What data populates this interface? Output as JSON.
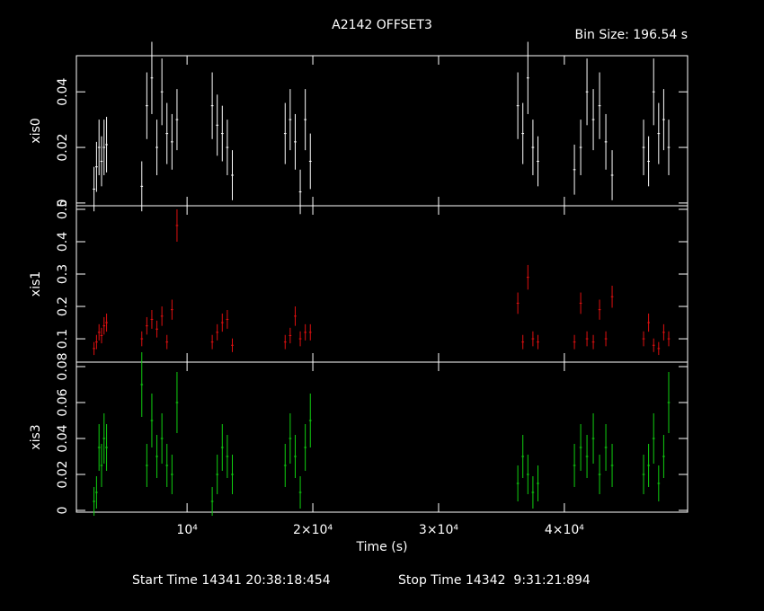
{
  "chart_data": [
    {
      "type": "scatter",
      "title": "A2142 OFFSET3",
      "subtitle": "Bin Size: 196.54 s",
      "ylabel": "xis0",
      "color": "#ffffff",
      "x": [
        2600,
        2800,
        3000,
        3200,
        3400,
        3600,
        6400,
        6800,
        7200,
        7600,
        8000,
        8400,
        8800,
        9200,
        12000,
        12400,
        12800,
        13200,
        13600,
        17800,
        18200,
        18600,
        19000,
        19400,
        19800,
        36300,
        36700,
        37100,
        37500,
        37900,
        40800,
        41300,
        41800,
        42300,
        42800,
        43300,
        43800,
        46300,
        46700,
        47100,
        47500,
        47900,
        48300
      ],
      "x_error": 98,
      "values": [
        0.005,
        0.013,
        0.02,
        0.015,
        0.02,
        0.021,
        0.006,
        0.035,
        0.045,
        0.02,
        0.04,
        0.025,
        0.022,
        0.03,
        0.035,
        0.028,
        0.025,
        0.02,
        0.01,
        0.025,
        0.03,
        0.022,
        0.004,
        0.03,
        0.015,
        0.035,
        0.025,
        0.045,
        0.02,
        0.015,
        0.012,
        0.02,
        0.04,
        0.03,
        0.035,
        0.022,
        0.01,
        0.02,
        0.015,
        0.04,
        0.025,
        0.03,
        0.02
      ],
      "errors": [
        0.008,
        0.009,
        0.01,
        0.009,
        0.01,
        0.01,
        0.009,
        0.012,
        0.013,
        0.01,
        0.012,
        0.011,
        0.01,
        0.011,
        0.012,
        0.011,
        0.01,
        0.01,
        0.009,
        0.011,
        0.011,
        0.01,
        0.008,
        0.011,
        0.01,
        0.012,
        0.011,
        0.013,
        0.01,
        0.009,
        0.009,
        0.01,
        0.012,
        0.011,
        0.012,
        0.01,
        0.009,
        0.01,
        0.009,
        0.012,
        0.011,
        0.011,
        0.01
      ],
      "xlim": [
        1200,
        49800
      ],
      "xticks": [
        10000,
        20000,
        30000,
        40000
      ],
      "ylim": [
        -0.001,
        0.053
      ],
      "yticks": [
        0,
        0.02,
        0.04
      ]
    },
    {
      "type": "scatter",
      "ylabel": "xis1",
      "color": "#e01010",
      "x": [
        2600,
        2800,
        3000,
        3200,
        3400,
        3600,
        6400,
        6800,
        7200,
        7600,
        8000,
        8400,
        8800,
        9200,
        12000,
        12400,
        12800,
        13200,
        13600,
        17800,
        18200,
        18600,
        19000,
        19400,
        19800,
        36300,
        36700,
        37100,
        37500,
        37900,
        40800,
        41300,
        41800,
        42300,
        42800,
        43300,
        43800,
        46300,
        46700,
        47100,
        47500,
        47900,
        48300
      ],
      "x_error": 98,
      "values": [
        0.07,
        0.09,
        0.12,
        0.11,
        0.14,
        0.15,
        0.1,
        0.14,
        0.16,
        0.13,
        0.17,
        0.09,
        0.19,
        0.45,
        0.09,
        0.12,
        0.15,
        0.16,
        0.08,
        0.09,
        0.11,
        0.17,
        0.1,
        0.12,
        0.12,
        0.21,
        0.09,
        0.29,
        0.1,
        0.09,
        0.09,
        0.21,
        0.1,
        0.09,
        0.19,
        0.1,
        0.23,
        0.1,
        0.15,
        0.08,
        0.07,
        0.12,
        0.1
      ],
      "errors": [
        0.02,
        0.022,
        0.025,
        0.024,
        0.027,
        0.028,
        0.023,
        0.027,
        0.029,
        0.026,
        0.03,
        0.022,
        0.031,
        0.05,
        0.022,
        0.025,
        0.028,
        0.029,
        0.021,
        0.022,
        0.024,
        0.03,
        0.023,
        0.025,
        0.025,
        0.033,
        0.022,
        0.038,
        0.023,
        0.022,
        0.022,
        0.033,
        0.023,
        0.022,
        0.031,
        0.023,
        0.034,
        0.023,
        0.028,
        0.021,
        0.02,
        0.025,
        0.023
      ],
      "xlim": [
        1200,
        49800
      ],
      "xticks": [
        10000,
        20000,
        30000,
        40000
      ],
      "ylim": [
        0.028,
        0.511
      ],
      "yticks": [
        0.1,
        0.2,
        0.3,
        0.4,
        0.5
      ]
    },
    {
      "type": "scatter",
      "ylabel": "xis3",
      "xlabel": "Time (s)",
      "color": "#10d010",
      "annotations": [
        "Start Time 14341 20:38:18:454",
        "Stop Time 14342  9:31:21:894"
      ],
      "x": [
        2600,
        2800,
        3000,
        3200,
        3400,
        3600,
        6400,
        6800,
        7200,
        7600,
        8000,
        8400,
        8800,
        9200,
        12000,
        12400,
        12800,
        13200,
        13600,
        17800,
        18200,
        18600,
        19000,
        19400,
        19800,
        36300,
        36700,
        37100,
        37500,
        37900,
        40800,
        41300,
        41800,
        42300,
        42800,
        43300,
        43800,
        46300,
        46700,
        47100,
        47500,
        47900,
        48300
      ],
      "x_error": 98,
      "values": [
        0.005,
        0.01,
        0.035,
        0.025,
        0.04,
        0.035,
        0.07,
        0.025,
        0.05,
        0.03,
        0.04,
        0.025,
        0.02,
        0.06,
        0.005,
        0.02,
        0.035,
        0.03,
        0.02,
        0.025,
        0.04,
        0.03,
        0.01,
        0.035,
        0.05,
        0.015,
        0.03,
        0.02,
        0.01,
        0.015,
        0.025,
        0.035,
        0.03,
        0.04,
        0.02,
        0.035,
        0.025,
        0.02,
        0.025,
        0.04,
        0.015,
        0.03,
        0.06
      ],
      "errors": [
        0.008,
        0.009,
        0.013,
        0.012,
        0.014,
        0.013,
        0.018,
        0.012,
        0.015,
        0.012,
        0.014,
        0.012,
        0.011,
        0.017,
        0.008,
        0.011,
        0.013,
        0.012,
        0.011,
        0.012,
        0.014,
        0.012,
        0.009,
        0.013,
        0.015,
        0.01,
        0.012,
        0.011,
        0.009,
        0.01,
        0.012,
        0.013,
        0.012,
        0.014,
        0.011,
        0.013,
        0.012,
        0.011,
        0.012,
        0.014,
        0.01,
        0.012,
        0.017
      ],
      "xlim": [
        1200,
        49800
      ],
      "xticks": [
        {
          "value": 10000,
          "label": "10⁴"
        },
        {
          "value": 20000,
          "label": "2×10⁴"
        },
        {
          "value": 30000,
          "label": "3×10⁴"
        },
        {
          "value": 40000,
          "label": "4×10⁴"
        }
      ],
      "ylim": [
        -0.001,
        0.0825
      ],
      "yticks": [
        0,
        0.02,
        0.04,
        0.06,
        0.08
      ]
    }
  ]
}
